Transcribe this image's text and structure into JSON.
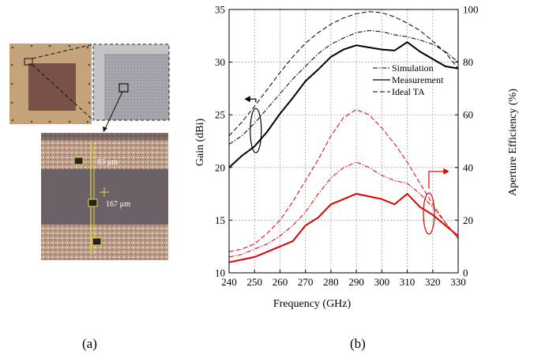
{
  "figure": {
    "panel_a": {
      "caption": "(a)",
      "labels": [
        "83 µm",
        "167 µm"
      ]
    },
    "panel_b": {
      "caption": "(b)"
    }
  },
  "chart_data": {
    "type": "line",
    "xlabel": "Frequency (GHz)",
    "ylabel": "Gain (dBi)",
    "y2label": "Aperture Efficiency (%)",
    "xlim": [
      240,
      330
    ],
    "ylim": [
      10,
      35
    ],
    "y2lim": [
      0,
      100
    ],
    "x_ticks": [
      240,
      250,
      260,
      270,
      280,
      290,
      300,
      310,
      320,
      330
    ],
    "y_ticks": [
      10,
      15,
      20,
      25,
      30,
      35
    ],
    "y2_ticks": [
      0,
      20,
      40,
      60,
      80,
      100
    ],
    "grid": true,
    "legend_position": "upper-right inside plot",
    "legend": [
      "Simulation",
      "Measurement",
      "Ideal TA"
    ],
    "colors": {
      "gain": "#000000",
      "efficiency": "#e00000"
    },
    "x": [
      240,
      245,
      250,
      255,
      260,
      265,
      270,
      275,
      280,
      285,
      290,
      295,
      300,
      305,
      310,
      315,
      320,
      325,
      330
    ],
    "series": [
      {
        "name": "Simulation",
        "axis": "left",
        "style": "dash-dot",
        "color": "#000000",
        "values": [
          22.2,
          23.0,
          24.2,
          25.6,
          27.0,
          28.4,
          29.6,
          30.8,
          31.7,
          32.3,
          32.8,
          33.0,
          32.9,
          32.6,
          32.4,
          32.1,
          31.7,
          31.0,
          30.0
        ]
      },
      {
        "name": "Measurement",
        "axis": "left",
        "style": "solid",
        "color": "#000000",
        "values": [
          20.0,
          21.1,
          22.0,
          23.4,
          25.1,
          26.6,
          28.2,
          29.3,
          30.5,
          31.2,
          31.6,
          31.4,
          31.2,
          31.1,
          31.9,
          31.0,
          30.3,
          29.6,
          29.4
        ]
      },
      {
        "name": "Ideal TA",
        "axis": "left",
        "style": "dash",
        "color": "#000000",
        "values": [
          23.0,
          24.3,
          25.8,
          27.4,
          29.0,
          30.5,
          31.8,
          32.8,
          33.6,
          34.2,
          34.6,
          34.8,
          34.7,
          34.3,
          33.7,
          33.0,
          32.0,
          30.9,
          29.4
        ]
      },
      {
        "name": "Simulation",
        "axis": "right",
        "style": "dash-dot",
        "color": "#e00000",
        "values": [
          6,
          7,
          9,
          11,
          14,
          18,
          23,
          30,
          36,
          40,
          42,
          40,
          37,
          35,
          34,
          30,
          25,
          19,
          13
        ]
      },
      {
        "name": "Measurement",
        "axis": "right",
        "style": "solid",
        "color": "#e00000",
        "values": [
          4,
          5,
          6,
          8,
          10,
          12,
          18,
          21,
          26,
          28,
          30,
          29,
          28,
          26,
          30,
          25,
          22,
          18,
          14
        ]
      },
      {
        "name": "Ideal TA",
        "axis": "right",
        "style": "dash",
        "color": "#e00000",
        "values": [
          8,
          9,
          11,
          15,
          20,
          27,
          35,
          43,
          52,
          59,
          62,
          60,
          55,
          49,
          42,
          34,
          26,
          19,
          13
        ]
      }
    ]
  }
}
